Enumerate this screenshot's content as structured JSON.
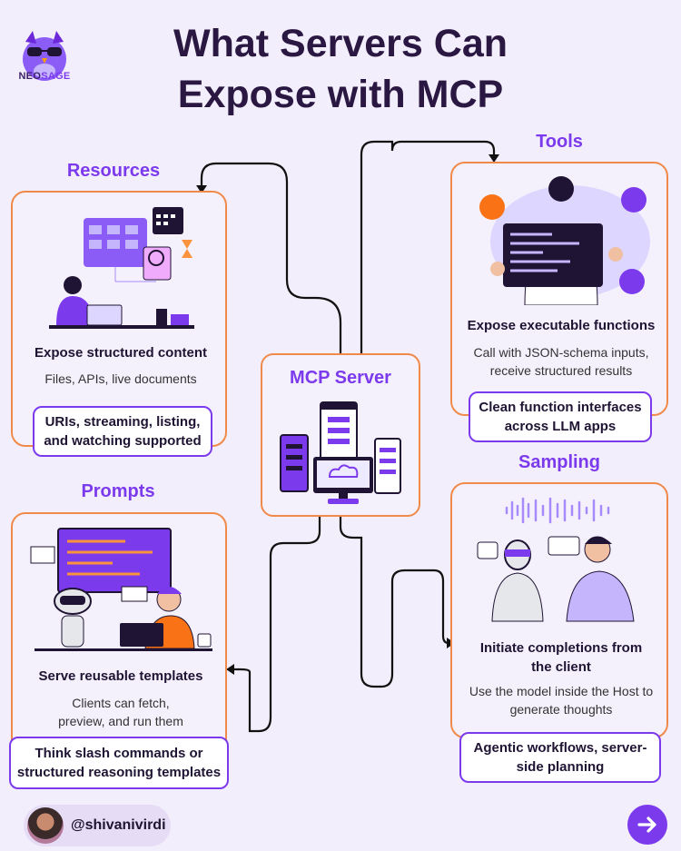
{
  "brand": {
    "logo_text_a": "NEO",
    "logo_text_b": "SAGE"
  },
  "title": {
    "line1": "What Servers Can",
    "line2": "Expose with MCP"
  },
  "center": {
    "title": "MCP Server"
  },
  "resources": {
    "title": "Resources",
    "heading": "Expose structured content",
    "body": "Files, APIs, live documents",
    "pill": "URIs, streaming, listing, and watching supported"
  },
  "tools": {
    "title": "Tools",
    "heading": "Expose executable functions",
    "body": "Call with JSON-schema inputs, receive structured results",
    "pill": "Clean function interfaces across LLM apps"
  },
  "prompts": {
    "title": "Prompts",
    "heading": "Serve reusable templates",
    "body": "Clients can fetch, preview, and run them",
    "pill": "Think slash commands or structured reasoning templates"
  },
  "sampling": {
    "title": "Sampling",
    "heading": "Initiate completions from the client",
    "body": "Use the model inside the Host to generate thoughts",
    "pill": "Agentic workflows, server-side planning"
  },
  "footer": {
    "handle": "@shivanivirdi"
  },
  "icons": {
    "logo": "owl-logo-icon",
    "next": "arrow-right-icon",
    "server": "server-rack-icon"
  },
  "colors": {
    "accent": "#7c3aed",
    "card_border": "#f08a4b",
    "background": "#f3eefb"
  }
}
